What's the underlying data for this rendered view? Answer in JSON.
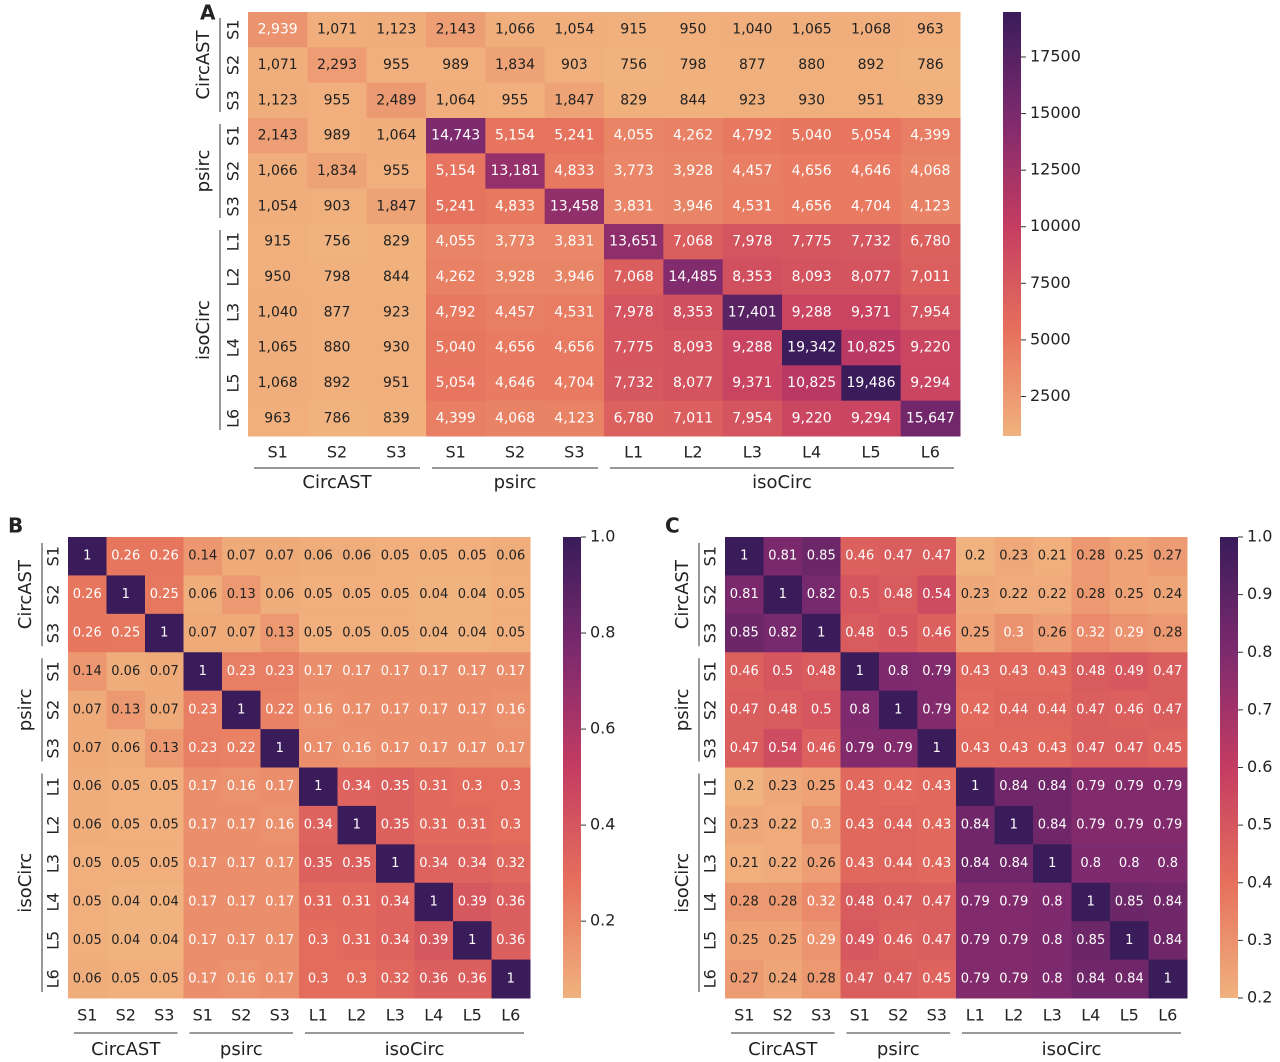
{
  "chart_data": [
    {
      "type": "heatmap",
      "panel": "A",
      "groups": [
        {
          "name": "CircAST",
          "categories": [
            "S1",
            "S2",
            "S3"
          ]
        },
        {
          "name": "psirc",
          "categories": [
            "S1",
            "S2",
            "S3"
          ]
        },
        {
          "name": "isoCirc",
          "categories": [
            "L1",
            "L2",
            "L3",
            "L4",
            "L5",
            "L6"
          ]
        }
      ],
      "values": [
        [
          2939,
          1071,
          1123,
          2143,
          1066,
          1054,
          915,
          950,
          1040,
          1065,
          1068,
          963
        ],
        [
          1071,
          2293,
          955,
          989,
          1834,
          903,
          756,
          798,
          877,
          880,
          892,
          786
        ],
        [
          1123,
          955,
          2489,
          1064,
          955,
          1847,
          829,
          844,
          923,
          930,
          951,
          839
        ],
        [
          2143,
          989,
          1064,
          14743,
          5154,
          5241,
          4055,
          4262,
          4792,
          5040,
          5054,
          4399
        ],
        [
          1066,
          1834,
          955,
          5154,
          13181,
          4833,
          3773,
          3928,
          4457,
          4656,
          4646,
          4068
        ],
        [
          1054,
          903,
          1847,
          5241,
          4833,
          13458,
          3831,
          3946,
          4531,
          4656,
          4704,
          4123
        ],
        [
          915,
          756,
          829,
          4055,
          3773,
          3831,
          13651,
          7068,
          7978,
          7775,
          7732,
          6780
        ],
        [
          950,
          798,
          844,
          4262,
          3928,
          3946,
          7068,
          14485,
          8353,
          8093,
          8077,
          7011
        ],
        [
          1040,
          877,
          923,
          4792,
          4457,
          4531,
          7978,
          8353,
          17401,
          9288,
          9371,
          7954
        ],
        [
          1065,
          880,
          930,
          5040,
          4656,
          4656,
          7775,
          8093,
          9288,
          19342,
          10825,
          9220
        ],
        [
          1068,
          892,
          951,
          5054,
          4646,
          4704,
          7732,
          8077,
          9371,
          10825,
          19486,
          9294
        ],
        [
          963,
          786,
          839,
          4399,
          4068,
          4123,
          6780,
          7011,
          7954,
          9220,
          9294,
          15647
        ]
      ],
      "value_labels": [
        [
          "2,939",
          "1,071",
          "1,123",
          "2,143",
          "1,066",
          "1,054",
          "915",
          "950",
          "1,040",
          "1,065",
          "1,068",
          "963"
        ],
        [
          "1,071",
          "2,293",
          "955",
          "989",
          "1,834",
          "903",
          "756",
          "798",
          "877",
          "880",
          "892",
          "786"
        ],
        [
          "1,123",
          "955",
          "2,489",
          "1,064",
          "955",
          "1,847",
          "829",
          "844",
          "923",
          "930",
          "951",
          "839"
        ],
        [
          "2,143",
          "989",
          "1,064",
          "14,743",
          "5,154",
          "5,241",
          "4,055",
          "4,262",
          "4,792",
          "5,040",
          "5,054",
          "4,399"
        ],
        [
          "1,066",
          "1,834",
          "955",
          "5,154",
          "13,181",
          "4,833",
          "3,773",
          "3,928",
          "4,457",
          "4,656",
          "4,646",
          "4,068"
        ],
        [
          "1,054",
          "903",
          "1,847",
          "5,241",
          "4,833",
          "13,458",
          "3,831",
          "3,946",
          "4,531",
          "4,656",
          "4,704",
          "4,123"
        ],
        [
          "915",
          "756",
          "829",
          "4,055",
          "3,773",
          "3,831",
          "13,651",
          "7,068",
          "7,978",
          "7,775",
          "7,732",
          "6,780"
        ],
        [
          "950",
          "798",
          "844",
          "4,262",
          "3,928",
          "3,946",
          "7,068",
          "14,485",
          "8,353",
          "8,093",
          "8,077",
          "7,011"
        ],
        [
          "1,040",
          "877",
          "923",
          "4,792",
          "4,457",
          "4,531",
          "7,978",
          "8,353",
          "17,401",
          "9,288",
          "9,371",
          "7,954"
        ],
        [
          "1,065",
          "880",
          "930",
          "5,040",
          "4,656",
          "4,656",
          "7,775",
          "8,093",
          "9,288",
          "19,342",
          "10,825",
          "9,220"
        ],
        [
          "1,068",
          "892",
          "951",
          "5,054",
          "4,646",
          "4,704",
          "7,732",
          "8,077",
          "9,371",
          "10,825",
          "19,486",
          "9,294"
        ],
        [
          "963",
          "786",
          "839",
          "4,399",
          "4,068",
          "4,123",
          "6,780",
          "7,011",
          "7,954",
          "9,220",
          "9,294",
          "15,647"
        ]
      ],
      "clim": [
        756,
        19486
      ],
      "cticks": [
        2500,
        5000,
        7500,
        10000,
        12500,
        15000,
        17500
      ],
      "colors": [
        "#f0b27e",
        "#e6705c",
        "#c43c62",
        "#7d2a6e",
        "#3a1c5a"
      ]
    },
    {
      "type": "heatmap",
      "panel": "B",
      "groups": [
        {
          "name": "CircAST",
          "categories": [
            "S1",
            "S2",
            "S3"
          ]
        },
        {
          "name": "psirc",
          "categories": [
            "S1",
            "S2",
            "S3"
          ]
        },
        {
          "name": "isoCirc",
          "categories": [
            "L1",
            "L2",
            "L3",
            "L4",
            "L5",
            "L6"
          ]
        }
      ],
      "values": [
        [
          1,
          0.26,
          0.26,
          0.14,
          0.07,
          0.07,
          0.06,
          0.06,
          0.05,
          0.05,
          0.05,
          0.06
        ],
        [
          0.26,
          1,
          0.25,
          0.06,
          0.13,
          0.06,
          0.05,
          0.05,
          0.05,
          0.04,
          0.04,
          0.05
        ],
        [
          0.26,
          0.25,
          1,
          0.07,
          0.07,
          0.13,
          0.05,
          0.05,
          0.05,
          0.04,
          0.04,
          0.05
        ],
        [
          0.14,
          0.06,
          0.07,
          1,
          0.23,
          0.23,
          0.17,
          0.17,
          0.17,
          0.17,
          0.17,
          0.17
        ],
        [
          0.07,
          0.13,
          0.07,
          0.23,
          1,
          0.22,
          0.16,
          0.17,
          0.17,
          0.17,
          0.17,
          0.16
        ],
        [
          0.07,
          0.06,
          0.13,
          0.23,
          0.22,
          1,
          0.17,
          0.16,
          0.17,
          0.17,
          0.17,
          0.17
        ],
        [
          0.06,
          0.05,
          0.05,
          0.17,
          0.16,
          0.17,
          1,
          0.34,
          0.35,
          0.31,
          0.3,
          0.3
        ],
        [
          0.06,
          0.05,
          0.05,
          0.17,
          0.17,
          0.16,
          0.34,
          1,
          0.35,
          0.31,
          0.31,
          0.3
        ],
        [
          0.05,
          0.05,
          0.05,
          0.17,
          0.17,
          0.17,
          0.35,
          0.35,
          1,
          0.34,
          0.34,
          0.32
        ],
        [
          0.05,
          0.04,
          0.04,
          0.17,
          0.17,
          0.17,
          0.31,
          0.31,
          0.34,
          1,
          0.39,
          0.36
        ],
        [
          0.05,
          0.04,
          0.04,
          0.17,
          0.17,
          0.17,
          0.3,
          0.31,
          0.34,
          0.39,
          1,
          0.36
        ],
        [
          0.06,
          0.05,
          0.05,
          0.17,
          0.16,
          0.17,
          0.3,
          0.3,
          0.32,
          0.36,
          0.36,
          1
        ]
      ],
      "clim": [
        0.04,
        1
      ],
      "cticks": [
        0.2,
        0.4,
        0.6,
        0.8,
        {
          "value": 1,
          "label": "1.0"
        }
      ],
      "colors": [
        "#f0b27e",
        "#e6705c",
        "#c43c62",
        "#7d2a6e",
        "#3a1c5a"
      ]
    },
    {
      "type": "heatmap",
      "panel": "C",
      "groups": [
        {
          "name": "CircAST",
          "categories": [
            "S1",
            "S2",
            "S3"
          ]
        },
        {
          "name": "psirc",
          "categories": [
            "S1",
            "S2",
            "S3"
          ]
        },
        {
          "name": "isoCirc",
          "categories": [
            "L1",
            "L2",
            "L3",
            "L4",
            "L5",
            "L6"
          ]
        }
      ],
      "values": [
        [
          1,
          0.81,
          0.85,
          0.46,
          0.47,
          0.47,
          0.2,
          0.23,
          0.21,
          0.28,
          0.25,
          0.27
        ],
        [
          0.81,
          1,
          0.82,
          0.5,
          0.48,
          0.54,
          0.23,
          0.22,
          0.22,
          0.28,
          0.25,
          0.24
        ],
        [
          0.85,
          0.82,
          1,
          0.48,
          0.5,
          0.46,
          0.25,
          0.3,
          0.26,
          0.32,
          0.29,
          0.28
        ],
        [
          0.46,
          0.5,
          0.48,
          1,
          0.8,
          0.79,
          0.43,
          0.43,
          0.43,
          0.48,
          0.49,
          0.47
        ],
        [
          0.47,
          0.48,
          0.5,
          0.8,
          1,
          0.79,
          0.42,
          0.44,
          0.44,
          0.47,
          0.46,
          0.47
        ],
        [
          0.47,
          0.54,
          0.46,
          0.79,
          0.79,
          1,
          0.43,
          0.43,
          0.43,
          0.47,
          0.47,
          0.45
        ],
        [
          0.2,
          0.23,
          0.25,
          0.43,
          0.42,
          0.43,
          1,
          0.84,
          0.84,
          0.79,
          0.79,
          0.79
        ],
        [
          0.23,
          0.22,
          0.3,
          0.43,
          0.44,
          0.43,
          0.84,
          1,
          0.84,
          0.79,
          0.79,
          0.79
        ],
        [
          0.21,
          0.22,
          0.26,
          0.43,
          0.44,
          0.43,
          0.84,
          0.84,
          1,
          0.8,
          0.8,
          0.8
        ],
        [
          0.28,
          0.28,
          0.32,
          0.48,
          0.47,
          0.47,
          0.79,
          0.79,
          0.8,
          1,
          0.85,
          0.84
        ],
        [
          0.25,
          0.25,
          0.29,
          0.49,
          0.46,
          0.47,
          0.79,
          0.79,
          0.8,
          0.85,
          1,
          0.84
        ],
        [
          0.27,
          0.24,
          0.28,
          0.47,
          0.47,
          0.45,
          0.79,
          0.79,
          0.8,
          0.84,
          0.84,
          1
        ]
      ],
      "clim": [
        0.2,
        1
      ],
      "cticks": [
        0.2,
        0.3,
        0.4,
        0.5,
        0.6,
        0.7,
        0.8,
        0.9,
        {
          "value": 1,
          "label": "1.0"
        }
      ],
      "colors": [
        "#f0b27e",
        "#e6705c",
        "#c43c62",
        "#7d2a6e",
        "#3a1c5a"
      ]
    }
  ]
}
